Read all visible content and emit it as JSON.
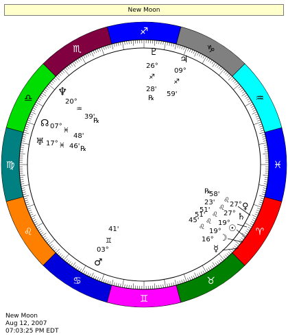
{
  "header": {
    "title": "New Moon"
  },
  "footer": {
    "chart_name": "New Moon",
    "date": "Aug 12, 2007",
    "time": "07:03:25 PM EDT"
  },
  "signs": [
    {
      "name": "Capricorn",
      "glyph": "♑",
      "color": "#808080"
    },
    {
      "name": "Sagittarius",
      "glyph": "♐",
      "color": "#0000ff"
    },
    {
      "name": "Scorpio",
      "glyph": "♏",
      "color": "#800040"
    },
    {
      "name": "Libra",
      "glyph": "♎",
      "color": "#00dd00"
    },
    {
      "name": "Virgo",
      "glyph": "♍",
      "color": "#008080"
    },
    {
      "name": "Leo",
      "glyph": "♌",
      "color": "#ff8000"
    },
    {
      "name": "Cancer",
      "glyph": "♋",
      "color": "#0000dd"
    },
    {
      "name": "Gemini",
      "glyph": "♊",
      "color": "#ff00ff"
    },
    {
      "name": "Taurus",
      "glyph": "♉",
      "color": "#008000"
    },
    {
      "name": "Aries",
      "glyph": "♈",
      "color": "#ff0000"
    },
    {
      "name": "Pisces",
      "glyph": "♓",
      "color": "#0000ff"
    },
    {
      "name": "Aquarius",
      "glyph": "♒",
      "color": "#00ffff"
    }
  ],
  "planets": {
    "pluto": {
      "glyph": "♇",
      "degree": "26°",
      "sign": "♐",
      "minute": "28'",
      "retro": "℞"
    },
    "jupiter": {
      "glyph": "♃",
      "degree": "09°",
      "sign": "♐",
      "minute": "59'"
    },
    "neptune": {
      "glyph": "♆",
      "degree": "20°",
      "sign": "♒",
      "minute": "39'",
      "retro": "℞"
    },
    "north_node": {
      "glyph": "☊",
      "degree": "07°",
      "sign": "♓",
      "minute": "48'"
    },
    "uranus": {
      "glyph": "♅",
      "degree": "17°",
      "sign": "♓",
      "minute": "46'",
      "retro": "℞"
    },
    "mars": {
      "glyph": "♂",
      "degree": "03°",
      "sign": "♊",
      "minute": "41'"
    },
    "leo_cluster": {
      "degrees": [
        "27°",
        "27°",
        "19°",
        "19°",
        "16°"
      ],
      "minutes": [
        "58'",
        "23'",
        "51'",
        "51'",
        "45'"
      ],
      "sign_glyph": "♌",
      "retro": "℞",
      "glyphs": [
        "♀",
        "♄",
        "☉",
        "☽",
        "☿"
      ]
    }
  }
}
